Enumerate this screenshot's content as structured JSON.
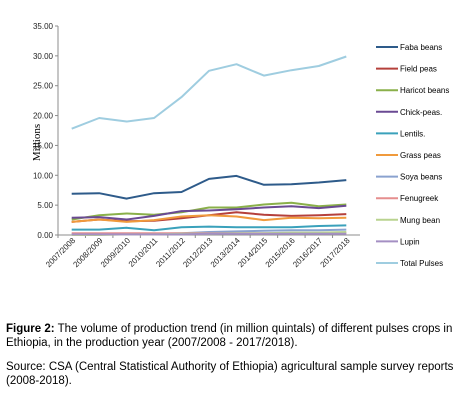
{
  "figure": {
    "label": "Figure 2:",
    "caption": "The volume of production trend (in million quintals) of different pulses crops in Ethiopia, in the production year (2007/2008 - 2017/2018).",
    "source": "Source: CSA (Central Statistical Authority of Ethiopia) agricultural sample survey reports (2008-2018)."
  },
  "chart_data": {
    "type": "line",
    "title": "",
    "xlabel": "",
    "ylabel": "Millions",
    "ylim": [
      0,
      35
    ],
    "yticks": [
      "0.00",
      "5.00",
      "10.00",
      "15.00",
      "20.00",
      "25.00",
      "30.00",
      "35.00"
    ],
    "grid": false,
    "legend_position": "right",
    "categories": [
      "2007/2008",
      "2008/2009",
      "2009/2010",
      "2010/2011",
      "2011/2012",
      "2012/2013",
      "2013/2014",
      "2014/2015",
      "2015/2016",
      "2016/2017",
      "2017/2018"
    ],
    "series": [
      {
        "name": "Faba beans",
        "color": "#2e5b8a",
        "values": [
          6.9,
          7.0,
          6.1,
          7.0,
          7.2,
          9.4,
          9.9,
          8.4,
          8.5,
          8.8,
          9.2
        ]
      },
      {
        "name": "Field peas",
        "color": "#b5403b",
        "values": [
          2.2,
          2.6,
          2.3,
          2.4,
          2.8,
          3.3,
          3.8,
          3.4,
          3.2,
          3.3,
          3.5
        ]
      },
      {
        "name": "Haricot beans",
        "color": "#8ab04a",
        "values": [
          2.6,
          3.3,
          3.6,
          3.4,
          3.8,
          4.6,
          4.6,
          5.1,
          5.4,
          4.8,
          5.1
        ]
      },
      {
        "name": "Chick-peas.",
        "color": "#6a4a93",
        "values": [
          2.9,
          3.0,
          2.6,
          3.2,
          4.0,
          4.1,
          4.3,
          4.6,
          4.8,
          4.5,
          4.9
        ]
      },
      {
        "name": "Lentils.",
        "color": "#3aa1bb",
        "values": [
          0.9,
          0.9,
          1.2,
          0.8,
          1.3,
          1.4,
          1.3,
          1.3,
          1.3,
          1.5,
          1.6
        ]
      },
      {
        "name": "Grass peas",
        "color": "#f09a3c",
        "values": [
          2.2,
          2.6,
          2.2,
          2.5,
          3.1,
          3.3,
          3.1,
          2.5,
          2.9,
          2.8,
          2.9
        ]
      },
      {
        "name": "Soya beans",
        "color": "#8aa2cf",
        "values": [
          0.1,
          0.1,
          0.1,
          0.2,
          0.3,
          0.5,
          0.6,
          0.7,
          0.8,
          0.8,
          0.9
        ]
      },
      {
        "name": "Fenugreek",
        "color": "#e58e8e",
        "values": [
          0.3,
          0.3,
          0.3,
          0.3,
          0.3,
          0.3,
          0.3,
          0.3,
          0.3,
          0.3,
          0.3
        ]
      },
      {
        "name": "Mung bean",
        "color": "#b9d38f",
        "values": [
          0.0,
          0.0,
          0.1,
          0.1,
          0.2,
          0.2,
          0.3,
          0.3,
          0.4,
          0.4,
          0.5
        ]
      },
      {
        "name": "Lupin",
        "color": "#a48fc3",
        "values": [
          0.1,
          0.1,
          0.1,
          0.1,
          0.1,
          0.2,
          0.2,
          0.2,
          0.2,
          0.2,
          0.2
        ]
      },
      {
        "name": "Total Pulses",
        "color": "#9fcde0",
        "values": [
          17.8,
          19.6,
          19.0,
          19.6,
          23.1,
          27.5,
          28.6,
          26.7,
          27.6,
          28.3,
          29.9
        ]
      }
    ]
  }
}
